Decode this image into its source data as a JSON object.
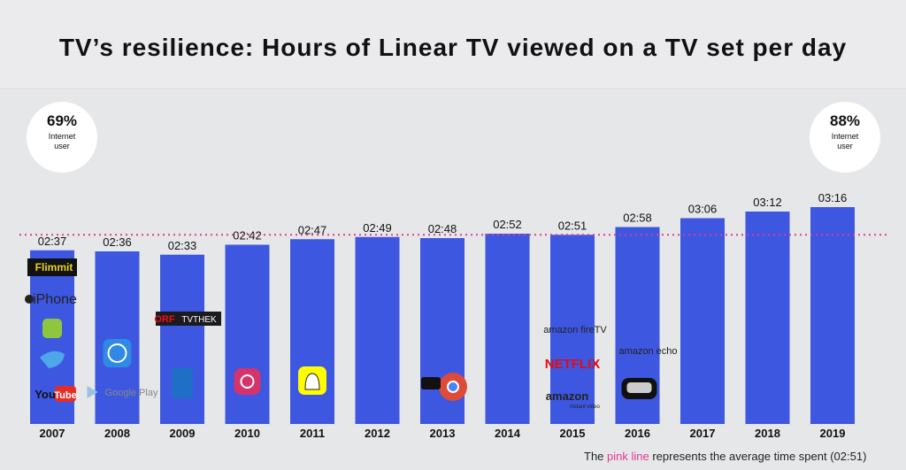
{
  "title": "TV’s resilience: Hours of Linear TV viewed on a TV set per day",
  "badges": {
    "left": {
      "value": "69%",
      "label": "Internet user"
    },
    "right": {
      "value": "88%",
      "label": "Internet user"
    }
  },
  "footnote": {
    "prefix": "The ",
    "highlight": "pink line",
    "suffix": " represents the average time spent (02:51)"
  },
  "colors": {
    "bar": "#3d57e0",
    "avg_line": "#e43a8f",
    "background": "#e6e7e9"
  },
  "chart_data": {
    "type": "bar",
    "categories": [
      "2007",
      "2008",
      "2009",
      "2010",
      "2011",
      "2012",
      "2013",
      "2014",
      "2015",
      "2016",
      "2017",
      "2018",
      "2019"
    ],
    "values": [
      157,
      156,
      153,
      162,
      167,
      169,
      168,
      172,
      171,
      178,
      186,
      192,
      196
    ],
    "value_labels": [
      "02:37",
      "02:36",
      "02:33",
      "02:42",
      "02:47",
      "02:49",
      "02:48",
      "02:52",
      "02:51",
      "02:58",
      "03:06",
      "03:12",
      "03:16"
    ],
    "unit": "minutes per day",
    "average": {
      "value": 171,
      "label": "02:51"
    },
    "title": "TV’s resilience: Hours of Linear TV viewed on a TV set per day",
    "xlabel": "",
    "ylabel": "",
    "grid": false,
    "logos": [
      {
        "year": "2007",
        "items": [
          "Flimmit",
          "iPhone",
          "android-icon",
          "twitter-icon",
          "YouTube"
        ]
      },
      {
        "year": "2008",
        "items": [
          "app-store-icon",
          "Google Play"
        ]
      },
      {
        "year": "2009",
        "items": [
          "ORF TVTHEK",
          "windows-phone-icon"
        ]
      },
      {
        "year": "2010",
        "items": [
          "instagram-icon"
        ]
      },
      {
        "year": "2011",
        "items": [
          "snapchat-icon"
        ]
      },
      {
        "year": "2013",
        "items": [
          "chromecast-icon"
        ]
      },
      {
        "year": "2015",
        "items": [
          "amazon fireTV",
          "NETFLIX",
          "amazon instant video"
        ]
      },
      {
        "year": "2016",
        "items": [
          "amazon echo",
          "vr-headset-icon"
        ]
      }
    ]
  }
}
